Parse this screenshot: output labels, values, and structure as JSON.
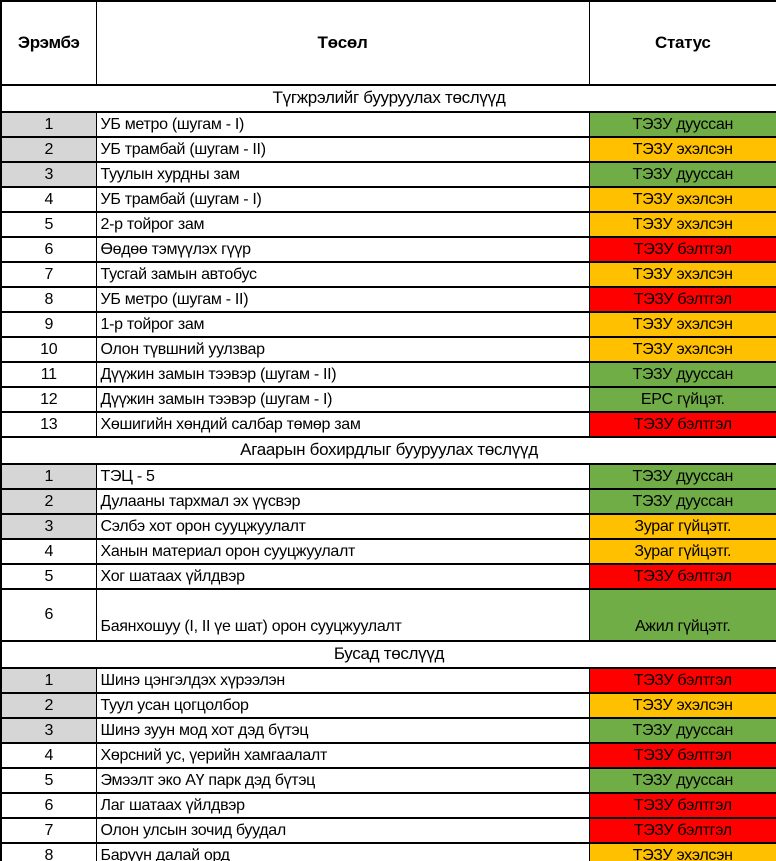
{
  "colors": {
    "green": "#70AD47",
    "amber": "#FFC000",
    "red": "#FF0000",
    "shaded": "#D6D6D6"
  },
  "header": {
    "col_order": "Эрэмбэ",
    "col_project": "Төсөл",
    "col_status": "Статус"
  },
  "sections": [
    {
      "title": "Түгжрэлийг бууруулах төслүүд",
      "rows": [
        {
          "order": "1",
          "project": "УБ метро (шугам - I)",
          "status": "ТЭЗУ дууссан",
          "status_color": "green",
          "shaded": true,
          "tall": false
        },
        {
          "order": "2",
          "project": "УБ трамбай (шугам - II)",
          "status": "ТЭЗУ эхэлсэн",
          "status_color": "amber",
          "shaded": true,
          "tall": false
        },
        {
          "order": "3",
          "project": "Туулын хурдны зам",
          "status": "ТЭЗУ дууссан",
          "status_color": "green",
          "shaded": true,
          "tall": false
        },
        {
          "order": "4",
          "project": "УБ трамбай (шугам - I)",
          "status": "ТЭЗУ эхэлсэн",
          "status_color": "amber",
          "shaded": false,
          "tall": false
        },
        {
          "order": "5",
          "project": "2-р тойрог зам",
          "status": "ТЭЗУ эхэлсэн",
          "status_color": "amber",
          "shaded": false,
          "tall": false
        },
        {
          "order": "6",
          "project": "Өөдөө тэмүүлэх гүүр",
          "status": "ТЭЗУ бэлтгэл",
          "status_color": "red",
          "shaded": false,
          "tall": false
        },
        {
          "order": "7",
          "project": "Тусгай замын автобус",
          "status": "ТЭЗУ эхэлсэн",
          "status_color": "amber",
          "shaded": false,
          "tall": false
        },
        {
          "order": "8",
          "project": "УБ метро (шугам - II)",
          "status": "ТЭЗУ бэлтгэл",
          "status_color": "red",
          "shaded": false,
          "tall": false
        },
        {
          "order": "9",
          "project": "1-р тойрог зам",
          "status": "ТЭЗУ эхэлсэн",
          "status_color": "amber",
          "shaded": false,
          "tall": false
        },
        {
          "order": "10",
          "project": "Олон түвшний уулзвар",
          "status": "ТЭЗУ эхэлсэн",
          "status_color": "amber",
          "shaded": false,
          "tall": false
        },
        {
          "order": "11",
          "project": "Дүүжин замын тээвэр (шугам - II)",
          "status": "ТЭЗУ дууссан",
          "status_color": "green",
          "shaded": false,
          "tall": false
        },
        {
          "order": "12",
          "project": "Дүүжин замын тээвэр (шугам - I)",
          "status": "EPC гүйцэт.",
          "status_color": "green",
          "shaded": false,
          "tall": false
        },
        {
          "order": "13",
          "project": "Хөшигийн хөндий салбар төмөр зам",
          "status": "ТЭЗУ бэлтгэл",
          "status_color": "red",
          "shaded": false,
          "tall": false
        }
      ]
    },
    {
      "title": "Агаарын бохирдлыг бууруулах төслүүд",
      "rows": [
        {
          "order": "1",
          "project": "ТЭЦ - 5",
          "status": "ТЭЗУ дууссан",
          "status_color": "green",
          "shaded": true,
          "tall": false
        },
        {
          "order": "2",
          "project": "Дулааны тархмал эх үүсвэр",
          "status": "ТЭЗУ дууссан",
          "status_color": "green",
          "shaded": true,
          "tall": false
        },
        {
          "order": "3",
          "project": "Сэлбэ хот орон сууцжуулалт",
          "status": "Зураг гүйцэтг.",
          "status_color": "amber",
          "shaded": true,
          "tall": false
        },
        {
          "order": "4",
          "project": "Ханын материал орон сууцжуулалт",
          "status": "Зураг гүйцэтг.",
          "status_color": "amber",
          "shaded": false,
          "tall": false
        },
        {
          "order": "5",
          "project": "Хог шатаах үйлдвэр",
          "status": "ТЭЗУ бэлтгэл",
          "status_color": "red",
          "shaded": false,
          "tall": false
        },
        {
          "order": "6",
          "project": "Баянхошуу (I, II үе шат) орон сууцжуулалт",
          "status": "Ажил гүйцэтг.",
          "status_color": "green",
          "shaded": false,
          "tall": true
        }
      ]
    },
    {
      "title": "Бусад төслүүд",
      "rows": [
        {
          "order": "1",
          "project": "Шинэ цэнгэлдэх хүрээлэн",
          "status": "ТЭЗУ бэлтгэл",
          "status_color": "red",
          "shaded": true,
          "tall": false
        },
        {
          "order": "2",
          "project": "Туул усан цогцолбор",
          "status": "ТЭЗУ эхэлсэн",
          "status_color": "amber",
          "shaded": true,
          "tall": false
        },
        {
          "order": "3",
          "project": "Шинэ зуун мод хот дэд бүтэц",
          "status": "ТЭЗУ дууссан",
          "status_color": "green",
          "shaded": true,
          "tall": false
        },
        {
          "order": "4",
          "project": "Хөрсний ус, үерийн хамгаалалт",
          "status": "ТЭЗУ бэлтгэл",
          "status_color": "red",
          "shaded": false,
          "tall": false
        },
        {
          "order": "5",
          "project": "Эмээлт эко АҮ парк дэд бүтэц",
          "status": "ТЭЗУ дууссан",
          "status_color": "green",
          "shaded": false,
          "tall": false
        },
        {
          "order": "6",
          "project": "Лаг шатаах үйлдвэр",
          "status": "ТЭЗУ бэлтгэл",
          "status_color": "red",
          "shaded": false,
          "tall": false
        },
        {
          "order": "7",
          "project": "Олон улсын зочид буудал",
          "status": "ТЭЗУ бэлтгэл",
          "status_color": "red",
          "shaded": false,
          "tall": false
        },
        {
          "order": "8",
          "project": "Баруун далай орд",
          "status": "ТЭЗУ эхэлсэн",
          "status_color": "amber",
          "shaded": false,
          "tall": false
        }
      ]
    }
  ]
}
